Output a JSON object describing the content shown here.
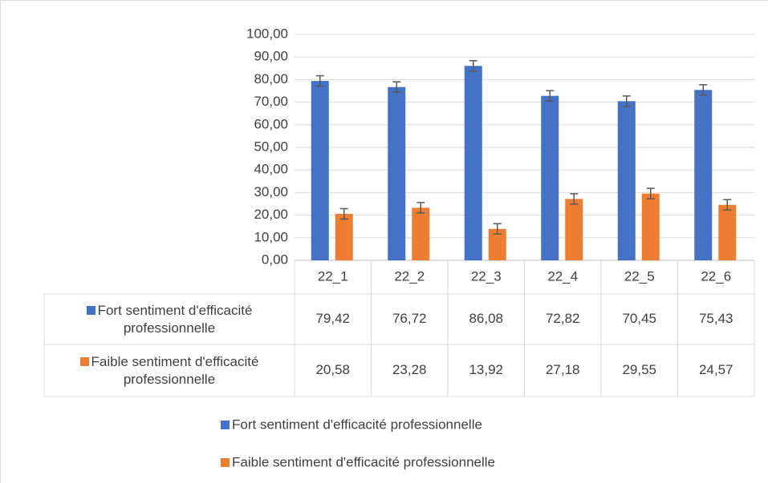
{
  "chart_data": {
    "type": "bar",
    "categories": [
      "22_1",
      "22_2",
      "22_3",
      "22_4",
      "22_5",
      "22_6"
    ],
    "series": [
      {
        "name": "Fort sentiment d'efficacité professionnelle",
        "color": "#4472c4",
        "values": [
          79.42,
          76.72,
          86.08,
          72.82,
          70.45,
          75.43
        ],
        "value_labels": [
          "79,42",
          "76,72",
          "86,08",
          "72,82",
          "70,45",
          "75,43"
        ],
        "errors": [
          2.3,
          2.3,
          2.3,
          2.3,
          2.3,
          2.3
        ]
      },
      {
        "name": "Faible sentiment d'efficacité professionnelle",
        "color": "#ed7d31",
        "values": [
          20.58,
          23.28,
          13.92,
          27.18,
          29.55,
          24.57
        ],
        "value_labels": [
          "20,58",
          "23,28",
          "13,92",
          "27,18",
          "29,55",
          "24,57"
        ],
        "errors": [
          2.3,
          2.3,
          2.3,
          2.3,
          2.3,
          2.3
        ]
      }
    ],
    "ylim": [
      0,
      100
    ],
    "yticks": [
      {
        "value": 0,
        "label": "0,00"
      },
      {
        "value": 10,
        "label": "10,00"
      },
      {
        "value": 20,
        "label": "20,00"
      },
      {
        "value": 30,
        "label": "30,00"
      },
      {
        "value": 40,
        "label": "40,00"
      },
      {
        "value": 50,
        "label": "50,00"
      },
      {
        "value": 60,
        "label": "60,00"
      },
      {
        "value": 70,
        "label": "70,00"
      },
      {
        "value": 80,
        "label": "80,00"
      },
      {
        "value": 90,
        "label": "90,00"
      },
      {
        "value": 100,
        "label": "100,00"
      }
    ],
    "grid": true,
    "legend": "bottom"
  }
}
